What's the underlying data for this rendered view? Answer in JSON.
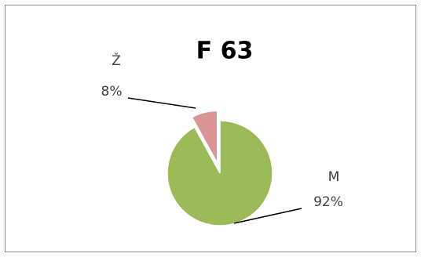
{
  "chart_data": {
    "type": "pie",
    "title": "F 63",
    "categories": [
      "M",
      "Ž"
    ],
    "values": [
      92,
      8
    ],
    "value_labels": [
      "92%",
      "8%"
    ],
    "colors": [
      "#9bbb59",
      "#d99694"
    ],
    "exploded": [
      false,
      true
    ]
  }
}
